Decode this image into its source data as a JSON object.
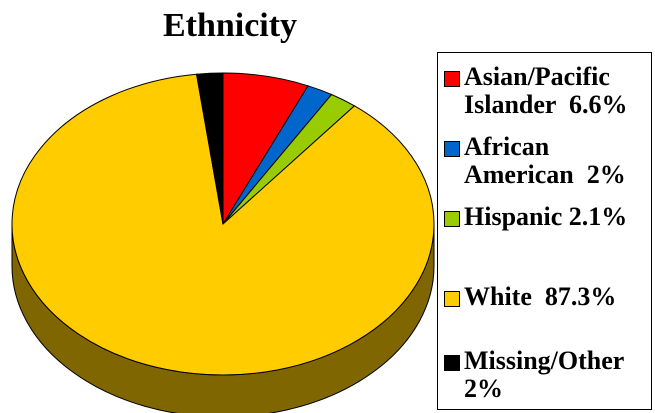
{
  "chart_data": {
    "type": "pie",
    "title": "Ethnicity",
    "legend_position": "right",
    "slices": [
      {
        "name": "Asian/Pacific Islander",
        "label": "Asian/Pacific\nIslander  6.6%",
        "value": 6.6,
        "color": "#ff0000",
        "side_color": "#7f0000"
      },
      {
        "name": "African American",
        "label": "African\nAmerican  2%",
        "value": 2.0,
        "color": "#0066cc",
        "side_color": "#003366"
      },
      {
        "name": "Hispanic",
        "label": "Hispanic 2.1%",
        "value": 2.1,
        "color": "#99cc00",
        "side_color": "#4c6600"
      },
      {
        "name": "White",
        "label": "White  87.3%",
        "value": 87.3,
        "color": "#ffcc00",
        "side_color": "#806600"
      },
      {
        "name": "Missing/Other",
        "label": "Missing/Other\n2%",
        "value": 2.0,
        "color": "#000000",
        "side_color": "#000000"
      }
    ]
  }
}
